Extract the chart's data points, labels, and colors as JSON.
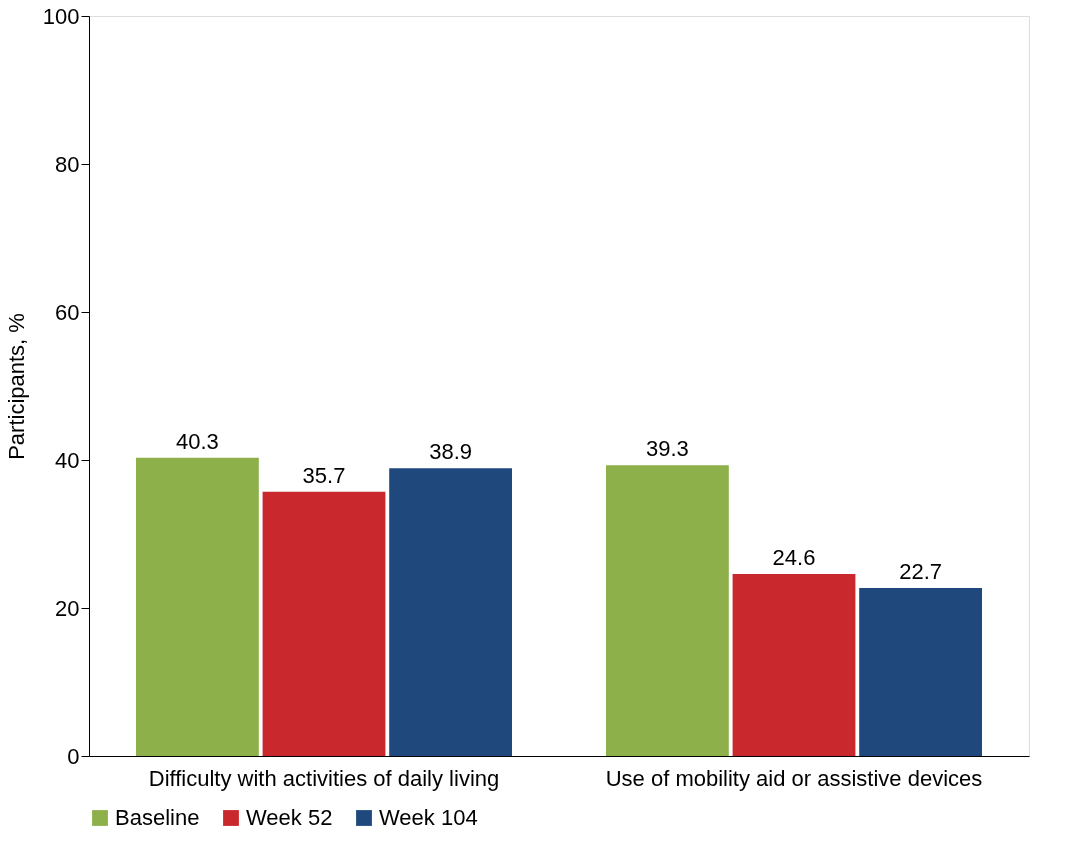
{
  "chart_data": {
    "type": "bar",
    "ylabel": "Participants, %",
    "categories": [
      "Difficulty with activities of daily living",
      "Use of mobility aid or assistive devices"
    ],
    "series": [
      {
        "name": "Baseline",
        "color": "#8db04a",
        "values": [
          40.3,
          39.3
        ]
      },
      {
        "name": "Week 52",
        "color": "#c9282d",
        "values": [
          35.7,
          24.6
        ]
      },
      {
        "name": "Week 104",
        "color": "#1f497d",
        "values": [
          38.9,
          22.7
        ]
      }
    ],
    "ylim": [
      0,
      100
    ],
    "yticks": [
      0,
      20,
      40,
      60,
      80,
      100
    ],
    "grid": false,
    "legend": "bottom",
    "data_labels": true
  }
}
